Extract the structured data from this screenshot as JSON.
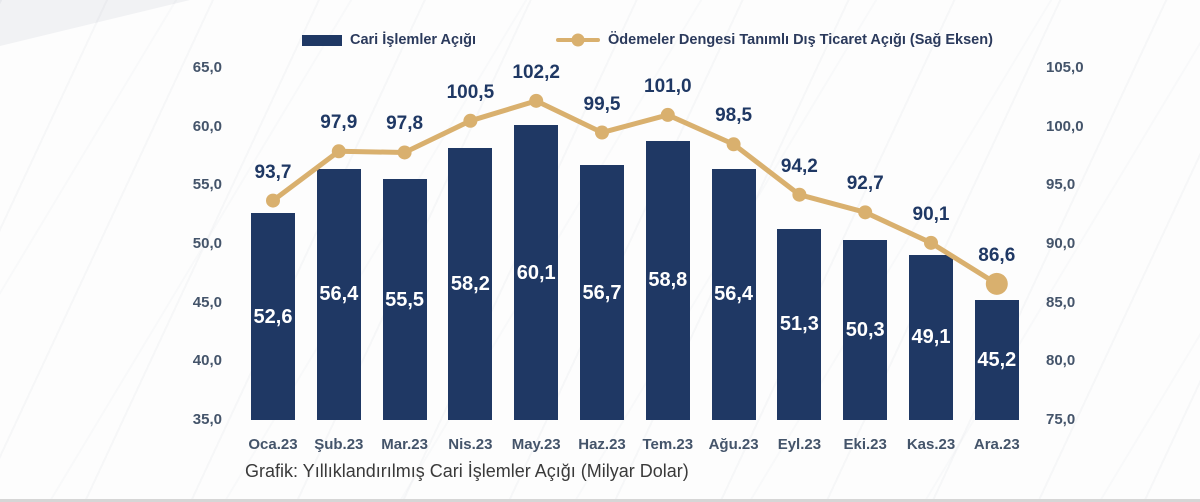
{
  "colors": {
    "bar": "#1F3864",
    "line": "#D9B06E",
    "axis_text": "#44546A",
    "category_text": "#44546A",
    "bar_value_text": "#FFFFFF",
    "line_value_text": "#1F3864",
    "caption_text": "#3A3A3A",
    "legend_text": "#2B3A5C"
  },
  "legend": {
    "bar_label": "Cari İşlemler Açığı",
    "line_label": "Ödemeler Dengesi Tanımlı Dış Ticaret Açığı (Sağ Eksen)"
  },
  "caption": "Grafik: Yıllıklandırılmış Cari İşlemler Açığı (Milyar Dolar)",
  "chart_data": {
    "type": "combo",
    "categories": [
      "Oca.23",
      "Şub.23",
      "Mar.23",
      "Nis.23",
      "May.23",
      "Haz.23",
      "Tem.23",
      "Ağu.23",
      "Eyl.23",
      "Eki.23",
      "Kas.23",
      "Ara.23"
    ],
    "series": [
      {
        "name": "Cari İşlemler Açığı",
        "type": "bar",
        "axis": "left",
        "values": [
          52.6,
          56.4,
          55.5,
          58.2,
          60.1,
          56.7,
          58.8,
          56.4,
          51.3,
          50.3,
          49.1,
          45.2
        ],
        "labels": [
          "52,6",
          "56,4",
          "55,5",
          "58,2",
          "60,1",
          "56,7",
          "58,8",
          "56,4",
          "51,3",
          "50,3",
          "49,1",
          "45,2"
        ]
      },
      {
        "name": "Ödemeler Dengesi Tanımlı Dış Ticaret Açığı (Sağ Eksen)",
        "type": "line",
        "axis": "right",
        "values": [
          93.7,
          97.9,
          97.8,
          100.5,
          102.2,
          99.5,
          101.0,
          98.5,
          94.2,
          92.7,
          90.1,
          86.6
        ],
        "labels": [
          "93,7",
          "97,9",
          "97,8",
          "100,5",
          "102,2",
          "99,5",
          "101,0",
          "98,5",
          "94,2",
          "92,7",
          "90,1",
          "86,6"
        ]
      }
    ],
    "left_axis": {
      "min": 35,
      "max": 65,
      "step": 5,
      "tick_labels": [
        "65,0",
        "60,0",
        "55,0",
        "50,0",
        "45,0",
        "40,0",
        "35,0"
      ]
    },
    "right_axis": {
      "min": 75,
      "max": 105,
      "step": 5,
      "tick_labels": [
        "105,0",
        "100,0",
        "95,0",
        "90,0",
        "85,0",
        "80,0",
        "75,0"
      ]
    },
    "grid": false,
    "legend_position": "top",
    "xlabel": "",
    "ylabel": ""
  }
}
